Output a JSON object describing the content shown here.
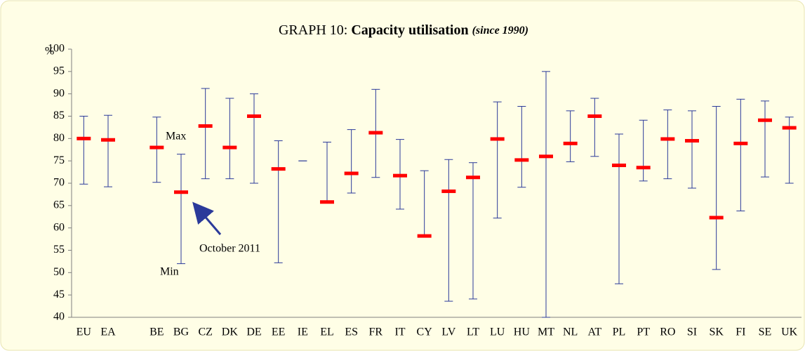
{
  "chart_data": {
    "type": "hilo",
    "title_prefix": "GRAPH 10:",
    "title": "Capacity utilisation",
    "subtitle": "(since 1990)",
    "y_unit": "%",
    "annotations": {
      "max": "Max",
      "min": "Min",
      "current": "October 2011"
    },
    "categories": [
      "EU",
      "EA",
      null,
      "BE",
      "BG",
      "CZ",
      "DK",
      "DE",
      "EE",
      "IE",
      "EL",
      "ES",
      "FR",
      "IT",
      "CY",
      "LV",
      "LT",
      "LU",
      "HU",
      "MT",
      "NL",
      "AT",
      "PL",
      "PT",
      "RO",
      "SI",
      "SK",
      "FI",
      "SE",
      "UK"
    ],
    "max": [
      85,
      85.2,
      null,
      84.8,
      76.5,
      91.2,
      89,
      90,
      79.5,
      75,
      79.2,
      82,
      91,
      79.8,
      72.8,
      75.3,
      74.6,
      88.2,
      87.2,
      95,
      86.2,
      89,
      81,
      84.1,
      86.4,
      86.2,
      87.2,
      88.8,
      88.4,
      84.8
    ],
    "min": [
      69.8,
      69.2,
      null,
      70.2,
      52,
      71,
      71,
      70,
      52.2,
      75,
      65.8,
      67.8,
      71.3,
      64.2,
      58.2,
      43.6,
      44.1,
      62.2,
      69.1,
      40,
      74.8,
      76,
      47.5,
      70.5,
      71,
      68.9,
      50.7,
      63.8,
      71.4,
      70
    ],
    "current": [
      80,
      79.7,
      null,
      78,
      68,
      82.8,
      78,
      85,
      73.2,
      null,
      65.8,
      72.2,
      81.3,
      71.7,
      58.2,
      68.2,
      71.3,
      79.9,
      75.2,
      76,
      78.9,
      85,
      74,
      73.5,
      79.9,
      79.5,
      62.3,
      78.9,
      84.1,
      82.4
    ],
    "range_color": "#2b3a9a",
    "current_color": "#ff0000",
    "ylim": [
      40,
      100
    ],
    "yticks": [
      40,
      45,
      50,
      55,
      60,
      65,
      70,
      75,
      80,
      85,
      90,
      95,
      100
    ]
  }
}
